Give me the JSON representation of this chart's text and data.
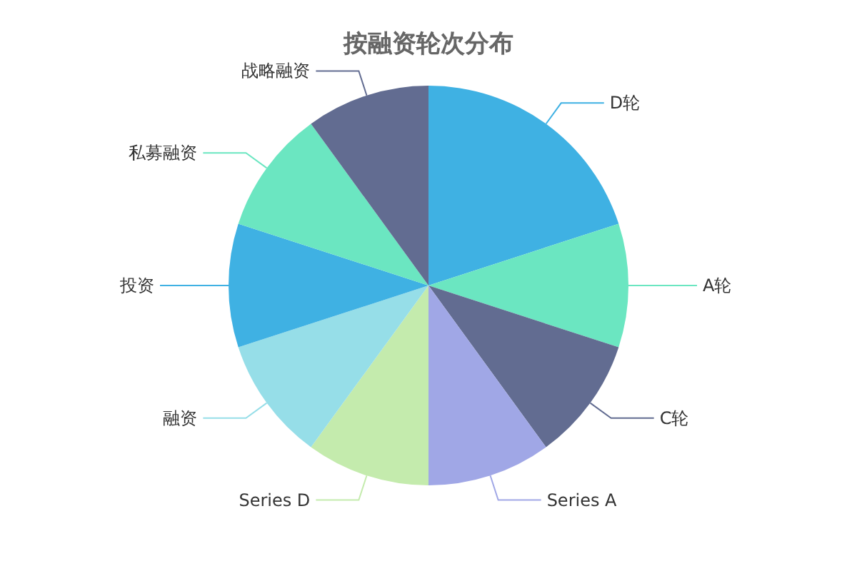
{
  "chart_data": {
    "type": "pie",
    "title": "按融资轮次分布",
    "categories": [
      "D轮",
      "A轮",
      "C轮",
      "Series A",
      "Series D",
      "融资",
      "投资",
      "私募融资",
      "战略融资"
    ],
    "values": [
      20,
      10,
      10,
      10,
      10,
      10,
      10,
      10,
      10
    ],
    "colors": [
      "#3fb1e3",
      "#6be6c1",
      "#626c91",
      "#a0a7e6",
      "#c4ebad",
      "#96dee8",
      "#3fb1e3",
      "#6be6c1",
      "#626c91"
    ],
    "legend": false
  }
}
